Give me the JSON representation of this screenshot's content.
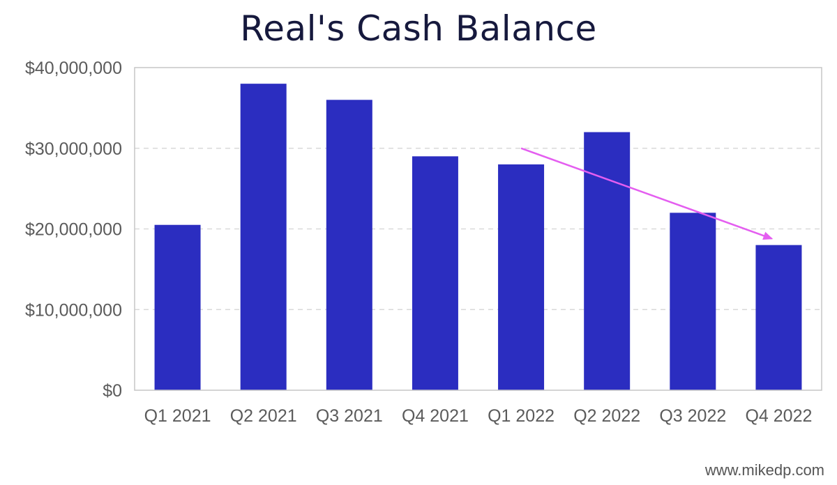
{
  "chart_data": {
    "type": "bar",
    "title": "Real's Cash Balance",
    "xlabel": "",
    "ylabel": "",
    "categories": [
      "Q1 2021",
      "Q2 2021",
      "Q3 2021",
      "Q4 2021",
      "Q1 2022",
      "Q2 2022",
      "Q3 2022",
      "Q4 2022"
    ],
    "values": [
      20500000,
      38000000,
      36000000,
      29000000,
      28000000,
      32000000,
      22000000,
      18000000
    ],
    "ylim": [
      0,
      40000000
    ],
    "yticks": [
      0,
      10000000,
      20000000,
      30000000,
      40000000
    ],
    "ytick_labels": [
      "$0",
      "$10,000,000",
      "$20,000,000",
      "$30,000,000",
      "$40,000,000"
    ],
    "grid": true,
    "legend": "none",
    "annotations": [
      {
        "type": "trend-arrow",
        "from": {
          "x": "Q1 2022",
          "y": 30000000
        },
        "to": {
          "x": "Q4 2022",
          "y": 18800000
        }
      }
    ],
    "colors": {
      "bar": "#2b2dc0",
      "arrow": "#e45ef0",
      "grid": "#d9d9d9",
      "axis": "#c6c6c6"
    }
  },
  "footer": {
    "credit": "www.mikedp.com"
  }
}
